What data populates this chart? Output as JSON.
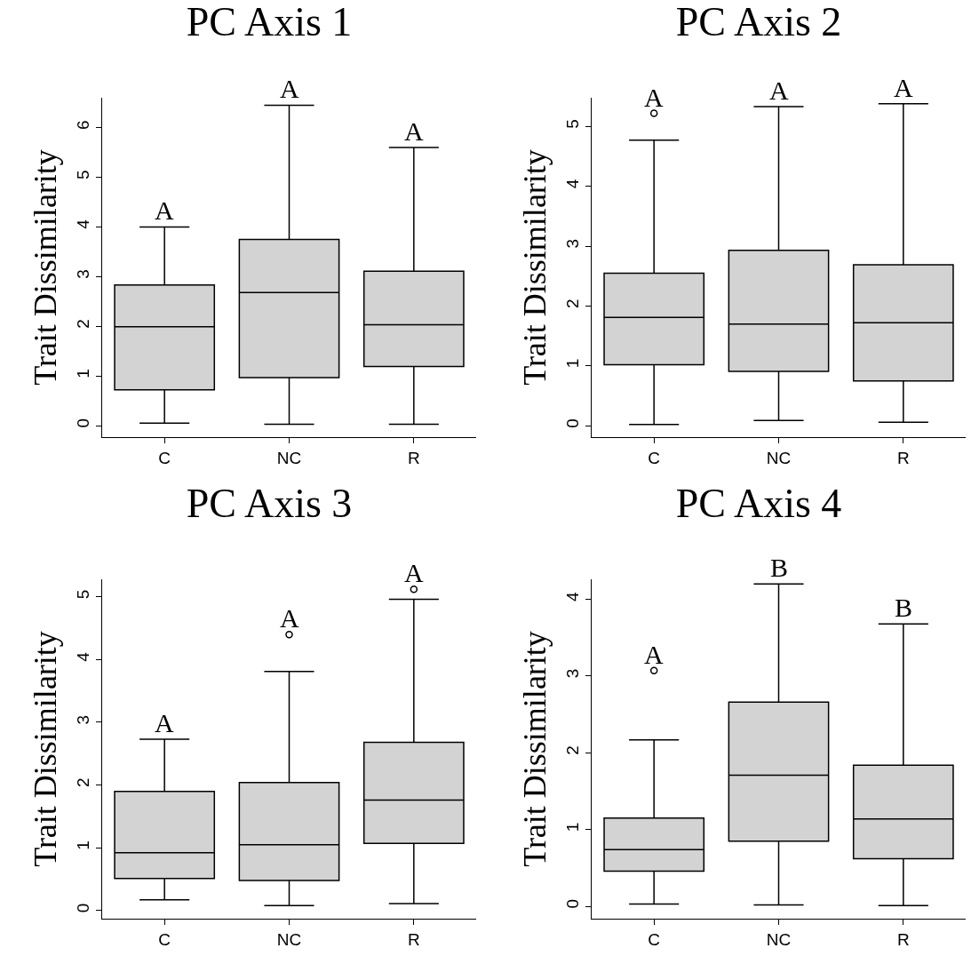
{
  "chart_data": [
    {
      "type": "box",
      "title": "PC Axis 1",
      "ylabel": "Trait Dissimilarity",
      "categories": [
        "C",
        "NC",
        "R"
      ],
      "ylim": [
        -0.23,
        6.6
      ],
      "yticks": [
        0,
        1,
        2,
        3,
        4,
        5,
        6
      ],
      "series": [
        {
          "color": "#d3d3d3",
          "boxes": [
            {
              "low": 0.05,
              "q1": 0.72,
              "median": 1.99,
              "q3": 2.83,
              "high": 4.0
            },
            {
              "low": 0.03,
              "q1": 0.97,
              "median": 2.68,
              "q3": 3.75,
              "high": 6.45
            },
            {
              "low": 0.03,
              "q1": 1.19,
              "median": 2.03,
              "q3": 3.11,
              "high": 5.6
            }
          ]
        }
      ],
      "annotations": [
        {
          "text": "A",
          "x": "C",
          "y": 4.0
        },
        {
          "text": "A",
          "x": "NC",
          "y": 6.45
        },
        {
          "text": "A",
          "x": "R",
          "y": 5.6
        }
      ]
    },
    {
      "type": "box",
      "title": "PC Axis 2",
      "ylabel": "Trait Dissimilarity",
      "categories": [
        "C",
        "NC",
        "R"
      ],
      "ylim": [
        -0.19,
        5.48
      ],
      "yticks": [
        0,
        1,
        2,
        3,
        4,
        5
      ],
      "series": [
        {
          "color": "#d3d3d3",
          "boxes": [
            {
              "low": 0.02,
              "q1": 1.02,
              "median": 1.81,
              "q3": 2.55,
              "high": 4.77,
              "outliers": [
                5.22
              ]
            },
            {
              "low": 0.09,
              "q1": 0.91,
              "median": 1.7,
              "q3": 2.93,
              "high": 5.33
            },
            {
              "low": 0.06,
              "q1": 0.75,
              "median": 1.72,
              "q3": 2.69,
              "high": 5.38
            }
          ]
        }
      ],
      "annotations": [
        {
          "text": "A",
          "x": "C",
          "y": 4.77
        },
        {
          "text": "A",
          "x": "NC",
          "y": 5.33
        },
        {
          "text": "A",
          "x": "R",
          "y": 5.38
        }
      ]
    },
    {
      "type": "box",
      "title": "PC Axis 3",
      "ylabel": "Trait Dissimilarity",
      "categories": [
        "C",
        "NC",
        "R"
      ],
      "ylim": [
        -0.13,
        5.28
      ],
      "yticks": [
        0,
        1,
        2,
        3,
        4,
        5
      ],
      "series": [
        {
          "color": "#d3d3d3",
          "boxes": [
            {
              "low": 0.17,
              "q1": 0.51,
              "median": 0.92,
              "q3": 1.9,
              "high": 2.73
            },
            {
              "low": 0.08,
              "q1": 0.48,
              "median": 1.05,
              "q3": 2.04,
              "high": 3.81,
              "outliers": [
                4.4
              ]
            },
            {
              "low": 0.11,
              "q1": 1.07,
              "median": 1.76,
              "q3": 2.68,
              "high": 4.96,
              "outliers": [
                5.12
              ]
            }
          ]
        }
      ],
      "annotations": [
        {
          "text": "A",
          "x": "C",
          "y": 2.73
        },
        {
          "text": "A",
          "x": "NC",
          "y": 3.81
        },
        {
          "text": "A",
          "x": "R",
          "y": 4.96
        }
      ]
    },
    {
      "type": "box",
      "title": "PC Axis 4",
      "ylabel": "Trait Dissimilarity",
      "categories": [
        "C",
        "NC",
        "R"
      ],
      "ylim": [
        -0.16,
        4.26
      ],
      "yticks": [
        0,
        1,
        2,
        3,
        4
      ],
      "series": [
        {
          "color": "#d3d3d3",
          "boxes": [
            {
              "low": 0.03,
              "q1": 0.46,
              "median": 0.74,
              "q3": 1.15,
              "high": 2.17,
              "outliers": [
                3.07
              ]
            },
            {
              "low": 0.02,
              "q1": 0.85,
              "median": 1.71,
              "q3": 2.66,
              "high": 4.2
            },
            {
              "low": 0.01,
              "q1": 0.62,
              "median": 1.14,
              "q3": 1.84,
              "high": 3.68
            }
          ]
        }
      ],
      "annotations": [
        {
          "text": "A",
          "x": "C",
          "y": 2.17
        },
        {
          "text": "B",
          "x": "NC",
          "y": 4.2
        },
        {
          "text": "B",
          "x": "R",
          "y": 3.68
        }
      ]
    }
  ]
}
